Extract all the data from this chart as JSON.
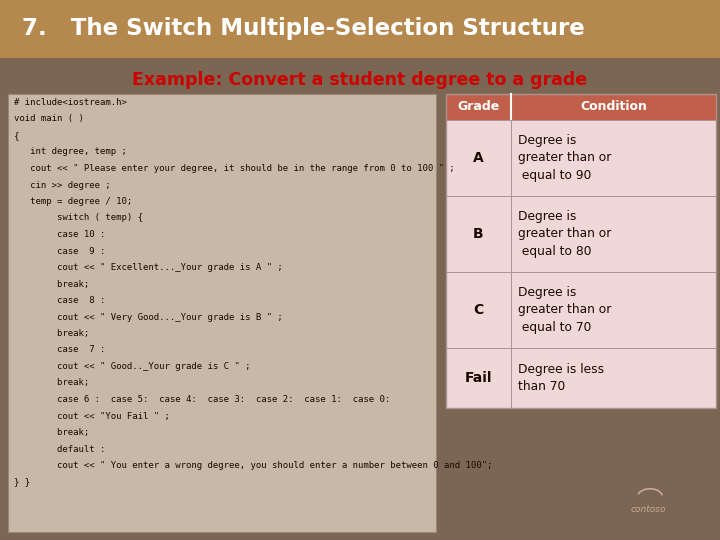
{
  "title": "7.   The Switch Multiple-Selection Structure",
  "subtitle": "Example: Convert a student degree to a grade",
  "title_bg": "#B5894E",
  "title_fg": "#FFFFFF",
  "subtitle_fg": "#CC0000",
  "slide_bg": "#7A6652",
  "content_bg": "#C8B8A8",
  "code_lines": [
    "# include<iostream.h>",
    "void main ( )",
    "{",
    "   int degree, temp ;",
    "   cout << \" Please enter your degree, it should be in the range from 0 to 100 \" ;",
    "   cin >> degree ;",
    "   temp = degree / 10;",
    "        switch ( temp) {",
    "        case 10 :",
    "        case  9 :",
    "        cout << \" Excellent..._Your grade is A \" ;",
    "        break;",
    "        case  8 :",
    "        cout << \" Very Good..._Your grade is B \" ;",
    "        break;",
    "        case  7 :",
    "        cout << \" Good.._Your grade is C \" ;",
    "        break;",
    "        case 6 :  case 5:  case 4:  case 3:  case 2:  case 1:  case 0:",
    "        cout << \"You Fail \" ;",
    "        break;",
    "        default :",
    "        cout << \" You enter a wrong degree, you should enter a number between 0 and 100\";",
    "} }"
  ],
  "table_header_bg": "#C0604A",
  "table_header_fg": "#FFFFFF",
  "table_row_bg": "#F0D8D8",
  "table_border": "#B09090",
  "table_grades": [
    "A",
    "B",
    "C",
    "Fail"
  ],
  "table_conditions": [
    "Degree is\ngreater than or\n equal to 90",
    "Degree is\ngreater than or\n equal to 80",
    "Degree is\ngreater than or\n equal to 70",
    "Degree is less\nthan 70"
  ],
  "code_font_size": 6.5,
  "code_fg": "#1A0A00"
}
